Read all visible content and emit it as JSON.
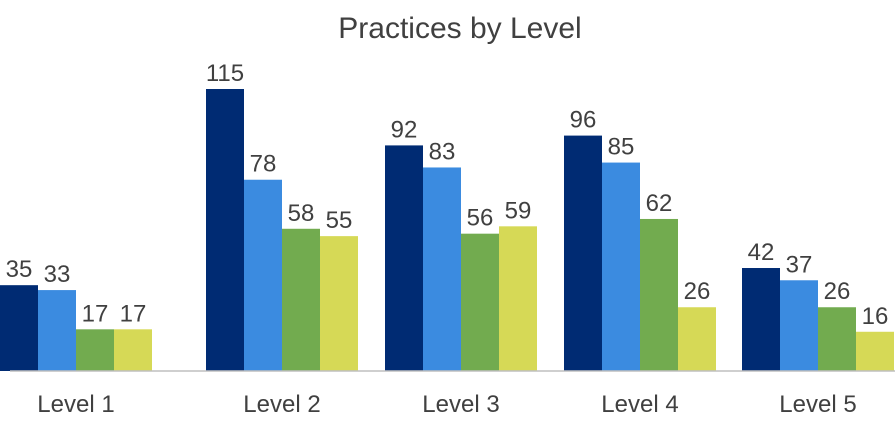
{
  "chart_data": {
    "type": "bar",
    "title": "Practices by Level",
    "xlabel": "",
    "ylabel": "",
    "categories": [
      "Level 1",
      "Level 2",
      "Level 3",
      "Level 4",
      "Level 5"
    ],
    "series": [
      {
        "values": [
          35,
          115,
          92,
          96,
          42
        ],
        "color": "#002b73"
      },
      {
        "values": [
          33,
          78,
          83,
          85,
          37
        ],
        "color": "#3b8be0"
      },
      {
        "values": [
          17,
          58,
          56,
          62,
          26
        ],
        "color": "#72ab4f"
      },
      {
        "values": [
          17,
          55,
          59,
          26,
          16
        ],
        "color": "#d6d956"
      }
    ],
    "ylim": [
      0,
      120
    ],
    "grid": false,
    "legend": "none",
    "data_labels": true,
    "axis_color": "#bfbfbf"
  }
}
